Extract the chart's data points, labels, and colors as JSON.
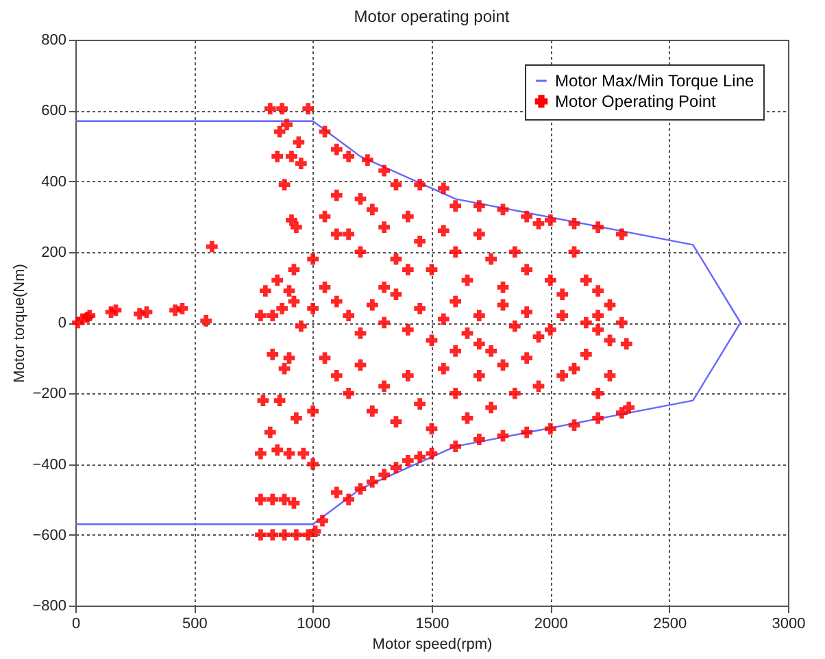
{
  "chart_data": {
    "type": "scatter",
    "title": "Motor operating point",
    "xlabel": "Motor speed(rpm)",
    "ylabel": "Motor torque(Nm)",
    "xlim": [
      0,
      3000
    ],
    "xticks": [
      0,
      500,
      1000,
      1500,
      2000,
      2500,
      3000
    ],
    "ylim": [
      -800,
      800
    ],
    "yticks": [
      -800,
      -600,
      -400,
      -200,
      0,
      200,
      400,
      600,
      800
    ],
    "grid": true,
    "legend": "top right",
    "series": [
      {
        "name": "Motor Max/Min Torque Line",
        "type": "line",
        "color": "#6666ff",
        "line_style": "solid",
        "marker": "none",
        "x": [
          0,
          1000,
          1200,
          1600,
          2600,
          2800,
          2600,
          1600,
          1200,
          1000,
          0
        ],
        "values": [
          570,
          570,
          470,
          350,
          220,
          0,
          -220,
          -350,
          -470,
          -570,
          -570
        ]
      },
      {
        "name": "Motor Operating Point",
        "color": "#ff0000",
        "marker": "cross",
        "x": [
          10,
          30,
          50,
          60,
          150,
          170,
          270,
          300,
          420,
          450,
          550,
          575,
          820,
          870,
          980,
          890,
          860,
          850,
          910,
          940,
          950,
          880,
          910,
          930,
          1000,
          850,
          800,
          900,
          920,
          780,
          830,
          870,
          920,
          1000,
          950,
          830,
          880,
          900,
          790,
          860,
          930,
          1000,
          820,
          780,
          850,
          900,
          960,
          1000,
          780,
          830,
          880,
          920,
          780,
          830,
          880,
          930,
          980,
          1010,
          1040,
          1100,
          1150,
          1200,
          1250,
          1300,
          1350,
          1400,
          1450,
          1500,
          1600,
          1700,
          1800,
          1900,
          2000,
          2100,
          2200,
          2300,
          2330,
          1050,
          1100,
          1150,
          1230,
          1300,
          1350,
          1450,
          1550,
          1600,
          1700,
          1800,
          1900,
          2000,
          2100,
          2200,
          2300,
          1050,
          1100,
          1150,
          1200,
          1250,
          1300,
          1350,
          1400,
          1450,
          1500,
          1550,
          1600,
          1650,
          1700,
          1750,
          1800,
          1850,
          1900,
          1950,
          2000,
          2050,
          2100,
          2150,
          2200,
          2250,
          2300,
          2320,
          1050,
          1100,
          1150,
          1200,
          1250,
          1300,
          1350,
          1400,
          1450,
          1500,
          1550,
          1600,
          1650,
          1700,
          1750,
          1800,
          1850,
          1900,
          1950,
          2000,
          2050,
          2150,
          2200,
          2250,
          2200,
          1050,
          1100,
          1150,
          1200,
          1250,
          1300,
          1350,
          1400,
          1450,
          1500,
          1550,
          1600,
          1650,
          1700,
          1750,
          1800,
          1850,
          1900,
          1950,
          2050,
          2100,
          2150,
          2250,
          2200,
          1100,
          1200,
          1300,
          1400,
          1600,
          1700
        ],
        "values": [
          0,
          10,
          15,
          20,
          30,
          35,
          25,
          30,
          35,
          40,
          5,
          215,
          605,
          605,
          605,
          560,
          540,
          470,
          470,
          510,
          450,
          390,
          290,
          270,
          180,
          120,
          90,
          90,
          150,
          20,
          20,
          40,
          60,
          40,
          -10,
          -90,
          -130,
          -100,
          -220,
          -220,
          -270,
          -250,
          -310,
          -370,
          -360,
          -370,
          -370,
          -400,
          -500,
          -500,
          -500,
          -510,
          -600,
          -600,
          -600,
          -600,
          -600,
          -590,
          -560,
          -480,
          -500,
          -470,
          -450,
          -430,
          -410,
          -390,
          -380,
          -370,
          -350,
          -330,
          -320,
          -310,
          -300,
          -290,
          -270,
          -255,
          -240,
          540,
          490,
          470,
          460,
          430,
          390,
          390,
          380,
          330,
          330,
          320,
          300,
          290,
          280,
          270,
          250,
          300,
          360,
          250,
          200,
          320,
          270,
          180,
          300,
          230,
          150,
          260,
          200,
          120,
          250,
          180,
          100,
          200,
          150,
          280,
          120,
          80,
          200,
          120,
          90,
          50,
          0,
          -60,
          100,
          60,
          20,
          -30,
          50,
          0,
          80,
          -20,
          40,
          -50,
          10,
          60,
          -30,
          20,
          -80,
          50,
          -10,
          30,
          -40,
          -20,
          20,
          0,
          -20,
          -50,
          20,
          -100,
          -150,
          -200,
          -120,
          -250,
          -180,
          -280,
          -150,
          -230,
          -300,
          -130,
          -200,
          -270,
          -150,
          -240,
          -120,
          -200,
          -100,
          -180,
          -150,
          -130,
          -90,
          -150,
          -200,
          250,
          350,
          100,
          150,
          -80,
          -60
        ]
      }
    ]
  }
}
